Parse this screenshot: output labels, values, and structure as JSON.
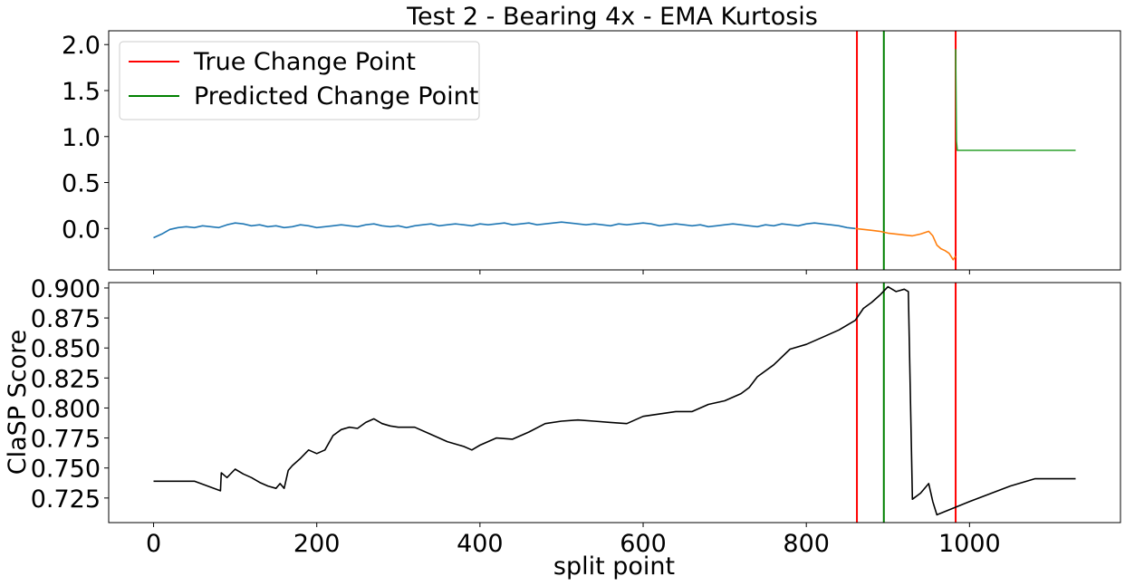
{
  "chart_data": [
    {
      "type": "line",
      "title": "Test 2 - Bearing 4x - EMA Kurtosis",
      "xlabel": "",
      "ylabel": "",
      "xlim": [
        -55,
        1185
      ],
      "ylim": [
        -0.45,
        2.15
      ],
      "yticks": [
        0.0,
        0.5,
        1.0,
        1.5,
        2.0
      ],
      "ytick_labels": [
        "0.0",
        "0.5",
        "1.0",
        "1.5",
        "2.0"
      ],
      "xticks": [
        0,
        200,
        400,
        600,
        800,
        1000
      ],
      "xtick_labels_visible": false,
      "legend": {
        "placement": "upper-left",
        "entries": [
          {
            "label": "True Change Point",
            "color": "#ff0000"
          },
          {
            "label": "Predicted Change Point",
            "color": "#008000"
          }
        ]
      },
      "series": [
        {
          "color": "#1f77b4",
          "x": [
            0,
            10,
            20,
            30,
            40,
            50,
            60,
            70,
            80,
            90,
            100,
            110,
            120,
            130,
            140,
            150,
            160,
            170,
            180,
            190,
            200,
            210,
            220,
            230,
            240,
            250,
            260,
            270,
            280,
            290,
            300,
            310,
            320,
            330,
            340,
            350,
            360,
            370,
            380,
            390,
            400,
            410,
            420,
            430,
            440,
            450,
            460,
            470,
            480,
            490,
            500,
            510,
            520,
            530,
            540,
            550,
            560,
            570,
            580,
            590,
            600,
            610,
            620,
            630,
            640,
            650,
            660,
            670,
            680,
            690,
            700,
            710,
            720,
            730,
            740,
            750,
            760,
            770,
            780,
            790,
            800,
            810,
            820,
            830,
            840,
            850,
            860
          ],
          "y": [
            -0.1,
            -0.06,
            -0.01,
            0.01,
            0.02,
            0.01,
            0.03,
            0.02,
            0.01,
            0.04,
            0.06,
            0.05,
            0.03,
            0.04,
            0.02,
            0.03,
            0.01,
            0.02,
            0.04,
            0.03,
            0.01,
            0.02,
            0.03,
            0.04,
            0.03,
            0.02,
            0.04,
            0.05,
            0.03,
            0.02,
            0.03,
            0.01,
            0.03,
            0.04,
            0.05,
            0.03,
            0.04,
            0.05,
            0.04,
            0.03,
            0.05,
            0.04,
            0.05,
            0.06,
            0.04,
            0.05,
            0.06,
            0.04,
            0.05,
            0.06,
            0.07,
            0.06,
            0.05,
            0.04,
            0.05,
            0.04,
            0.03,
            0.05,
            0.04,
            0.05,
            0.06,
            0.05,
            0.03,
            0.04,
            0.05,
            0.04,
            0.03,
            0.04,
            0.02,
            0.03,
            0.04,
            0.05,
            0.04,
            0.03,
            0.02,
            0.04,
            0.03,
            0.05,
            0.04,
            0.03,
            0.05,
            0.06,
            0.05,
            0.04,
            0.03,
            0.01,
            0.0
          ]
        },
        {
          "color": "#ff7f0e",
          "x": [
            860,
            870,
            880,
            890,
            900,
            910,
            920,
            930,
            940,
            950,
            955,
            960,
            965,
            970,
            975,
            980,
            983
          ],
          "y": [
            0.0,
            -0.01,
            -0.02,
            -0.03,
            -0.05,
            -0.06,
            -0.07,
            -0.08,
            -0.06,
            -0.03,
            -0.08,
            -0.18,
            -0.22,
            -0.24,
            -0.27,
            -0.34,
            -0.3
          ]
        },
        {
          "color": "#2ca02c",
          "x": [
            983,
            984,
            985,
            990,
            1000,
            1050,
            1100,
            1130
          ],
          "y": [
            1.95,
            0.95,
            0.85,
            0.85,
            0.85,
            0.85,
            0.85,
            0.85
          ]
        }
      ],
      "vlines": [
        {
          "x": 862,
          "color": "#ff0000"
        },
        {
          "x": 895,
          "color": "#008000"
        },
        {
          "x": 983,
          "color": "#ff0000"
        }
      ]
    },
    {
      "type": "line",
      "title": "",
      "xlabel": "split point",
      "ylabel": "ClaSP Score",
      "xlim": [
        -55,
        1185
      ],
      "ylim": [
        0.7045,
        0.9045
      ],
      "yticks": [
        0.725,
        0.75,
        0.775,
        0.8,
        0.825,
        0.85,
        0.875,
        0.9
      ],
      "ytick_labels": [
        "0.725",
        "0.750",
        "0.775",
        "0.800",
        "0.825",
        "0.850",
        "0.875",
        "0.900"
      ],
      "xticks": [
        0,
        200,
        400,
        600,
        800,
        1000
      ],
      "xtick_labels": [
        "0",
        "200",
        "400",
        "600",
        "800",
        "1000"
      ],
      "series": [
        {
          "color": "#000000",
          "x": [
            0,
            50,
            82,
            83,
            90,
            100,
            110,
            120,
            130,
            140,
            150,
            155,
            160,
            165,
            170,
            180,
            190,
            200,
            210,
            220,
            230,
            240,
            250,
            260,
            270,
            280,
            290,
            300,
            320,
            340,
            360,
            380,
            390,
            400,
            420,
            440,
            460,
            480,
            500,
            520,
            540,
            560,
            580,
            600,
            620,
            640,
            660,
            680,
            700,
            720,
            730,
            740,
            760,
            780,
            800,
            820,
            840,
            860,
            870,
            880,
            890,
            900,
            910,
            915,
            920,
            925,
            930,
            940,
            950,
            955,
            960,
            1000,
            1050,
            1080,
            1130
          ],
          "y": [
            0.739,
            0.739,
            0.731,
            0.746,
            0.742,
            0.749,
            0.745,
            0.742,
            0.738,
            0.735,
            0.733,
            0.737,
            0.733,
            0.748,
            0.752,
            0.758,
            0.765,
            0.762,
            0.765,
            0.777,
            0.782,
            0.784,
            0.783,
            0.788,
            0.791,
            0.787,
            0.785,
            0.784,
            0.784,
            0.778,
            0.772,
            0.768,
            0.765,
            0.769,
            0.775,
            0.774,
            0.78,
            0.787,
            0.789,
            0.79,
            0.789,
            0.788,
            0.787,
            0.793,
            0.795,
            0.797,
            0.797,
            0.803,
            0.806,
            0.812,
            0.817,
            0.826,
            0.836,
            0.849,
            0.853,
            0.859,
            0.865,
            0.873,
            0.883,
            0.888,
            0.894,
            0.901,
            0.897,
            0.898,
            0.899,
            0.897,
            0.724,
            0.729,
            0.737,
            0.722,
            0.711,
            0.722,
            0.735,
            0.741,
            0.741
          ]
        }
      ],
      "vlines": [
        {
          "x": 862,
          "color": "#ff0000"
        },
        {
          "x": 895,
          "color": "#008000"
        },
        {
          "x": 983,
          "color": "#ff0000"
        }
      ]
    }
  ]
}
